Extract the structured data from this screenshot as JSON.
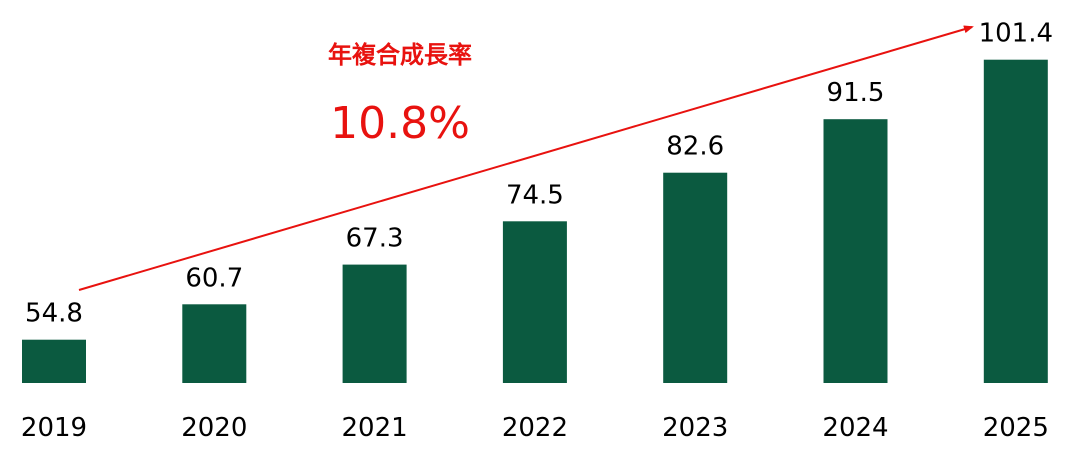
{
  "chart_data": {
    "type": "bar",
    "categories": [
      "2019",
      "2020",
      "2021",
      "2022",
      "2023",
      "2024",
      "2025"
    ],
    "values": [
      54.8,
      60.7,
      67.3,
      74.5,
      82.6,
      91.5,
      101.4
    ],
    "data_labels": [
      "54.8",
      "60.7",
      "67.3",
      "74.5",
      "82.6",
      "91.5",
      "101.4"
    ],
    "title": "",
    "xlabel": "",
    "ylabel": "",
    "ylim": [
      47.6,
      110
    ],
    "grid": false,
    "bar_color": "#0b5a40",
    "annotation": {
      "title": "年複合成長率",
      "value": "10.8%",
      "color": "#e8120f",
      "arrow": "trend line from 2019 to 2025, arrowhead at the end"
    }
  }
}
